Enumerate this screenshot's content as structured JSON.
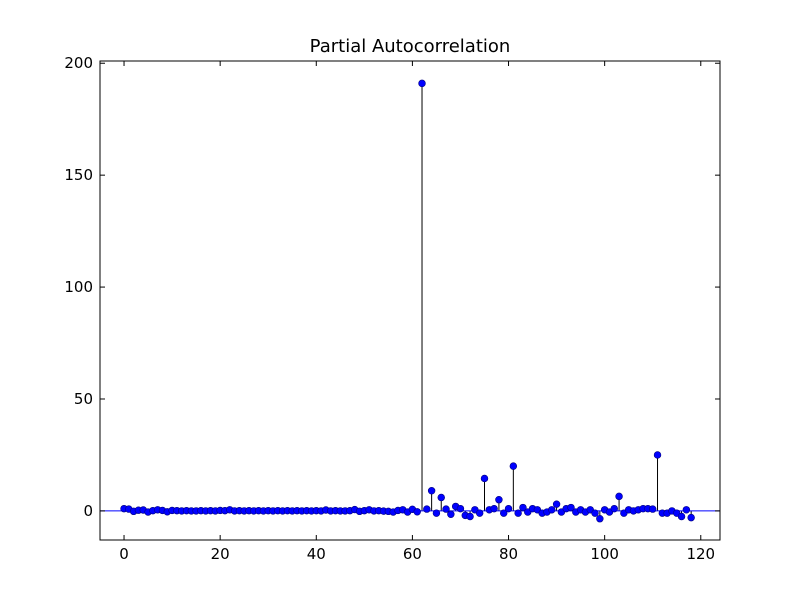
{
  "chart_data": {
    "type": "scatter",
    "subtype": "stem",
    "title": "Partial Autocorrelation",
    "xlabel": "",
    "ylabel": "",
    "xlim": [
      -5,
      124
    ],
    "ylim": [
      -13,
      201
    ],
    "xticks": [
      0,
      20,
      40,
      60,
      80,
      100,
      120
    ],
    "yticks": [
      0,
      50,
      100,
      150,
      200
    ],
    "grid": false,
    "legend": "none",
    "colors": {
      "marker": "#0000ff",
      "stem": "#000000",
      "baseline": "#0000ff",
      "axes": "#000000",
      "background": "#ffffff"
    },
    "series": [
      {
        "x": [
          0,
          1,
          2,
          3,
          4,
          5,
          6,
          7,
          8,
          9,
          10,
          11,
          12,
          13,
          14,
          15,
          16,
          17,
          18,
          19,
          20,
          21,
          22,
          23,
          24,
          25,
          26,
          27,
          28,
          29,
          30,
          31,
          32,
          33,
          34,
          35,
          36,
          37,
          38,
          39,
          40,
          41,
          42,
          43,
          44,
          45,
          46,
          47,
          48,
          49,
          50,
          51,
          52,
          53,
          54,
          55,
          56,
          57,
          58,
          59,
          60,
          61,
          62,
          63,
          64,
          65,
          66,
          67,
          68,
          69,
          70,
          71,
          72,
          73,
          74,
          75,
          76,
          77,
          78,
          79,
          80,
          81,
          82,
          83,
          84,
          85,
          86,
          87,
          88,
          89,
          90,
          91,
          92,
          93,
          94,
          95,
          96,
          97,
          98,
          99,
          100,
          101,
          102,
          103,
          104,
          105,
          106,
          107,
          108,
          109,
          110,
          111,
          112,
          113,
          114,
          115,
          116,
          117,
          118
        ],
        "y": [
          1.0,
          0.8,
          -0.2,
          0.3,
          0.4,
          -0.5,
          0.1,
          0.5,
          0.2,
          -0.4,
          0.2,
          0.1,
          0.0,
          0.1,
          0.0,
          0.0,
          0.1,
          0.0,
          0.1,
          0.0,
          0.2,
          0.1,
          0.5,
          0.0,
          0.1,
          0.0,
          0.1,
          0.0,
          0.1,
          0.0,
          0.1,
          0.0,
          0.1,
          0.0,
          0.1,
          0.0,
          0.1,
          0.0,
          0.1,
          0.0,
          0.1,
          0.0,
          0.4,
          0.0,
          0.1,
          0.0,
          0.0,
          0.1,
          0.6,
          -0.2,
          0.1,
          0.5,
          0.0,
          0.1,
          -0.1,
          -0.2,
          -0.5,
          0.2,
          0.5,
          -0.5,
          0.7,
          -0.4,
          191.0,
          0.8,
          9.0,
          -1.0,
          6.0,
          0.8,
          -1.5,
          2.0,
          1.0,
          -2.0,
          -2.5,
          0.5,
          -1.0,
          14.5,
          0.5,
          1.0,
          5.0,
          -1.0,
          1.0,
          20.0,
          -1.0,
          1.5,
          -0.5,
          1.0,
          0.5,
          -1.0,
          -0.5,
          0.5,
          3.0,
          -0.5,
          1.0,
          1.5,
          -0.5,
          0.5,
          -0.5,
          0.5,
          -1.0,
          -3.5,
          0.5,
          -0.5,
          1.0,
          6.5,
          -1.0,
          0.5,
          0.0,
          0.5,
          1.0,
          1.0,
          0.8,
          25.0,
          -1.0,
          -1.0,
          0.0,
          -1.0,
          -2.5,
          0.5,
          -3.0
        ]
      }
    ]
  }
}
